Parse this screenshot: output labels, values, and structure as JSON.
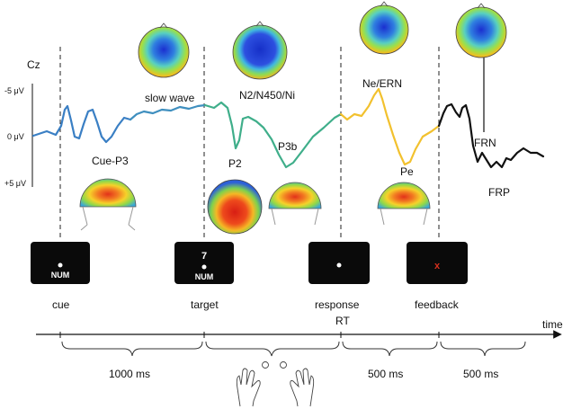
{
  "channel": "Cz",
  "y_axis": {
    "top": "-5 μV",
    "mid": "0 μV",
    "bottom": "+5 μV"
  },
  "components": {
    "cue_p3": "Cue-P3",
    "slow_wave": "slow wave",
    "n2": "N2/N450/Ni",
    "p2": "P2",
    "p3b": "P3b",
    "ne_ern": "Ne/ERN",
    "pe": "Pe",
    "frn": "FRN",
    "frp": "FRP"
  },
  "events": {
    "cue": "cue",
    "target": "target",
    "response": "response",
    "feedback": "feedback",
    "rt": "RT",
    "time": "time"
  },
  "screens": {
    "cue_text": "NUM",
    "target_number": "7",
    "target_text": "NUM",
    "feedback_symbol": "x"
  },
  "intervals": {
    "first": "1000 ms",
    "second": "500 ms",
    "third": "500 ms"
  },
  "colors": {
    "cue_segment": "#3a7fc4",
    "slow_segment": "#3f8fbf",
    "target_segment": "#3fae8a",
    "response_segment": "#f2c12e",
    "feedback_segment": "#111111",
    "topo_blue": "#1f3fd6",
    "topo_green": "#6fd24a",
    "topo_red": "#e83a1f"
  }
}
